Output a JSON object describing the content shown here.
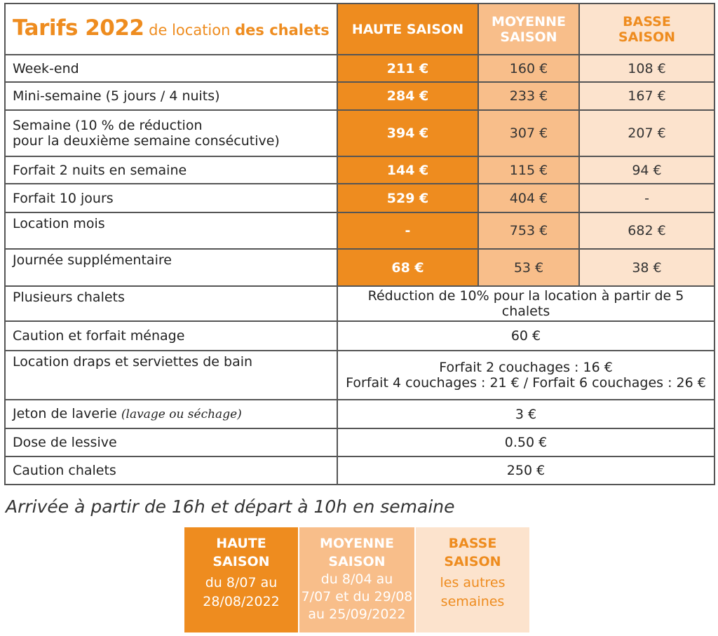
{
  "title": {
    "big": "Tarifs 2022",
    "mid": " de location ",
    "bold": "des chalets"
  },
  "headers": {
    "haute": "HAUTE SAISON",
    "moyenne_1": "MOYENNE",
    "moyenne_2": "SAISON",
    "basse_1": "BASSE",
    "basse_2": "SAISON"
  },
  "rows": [
    {
      "label": "Week-end",
      "haute": "211 €",
      "moyenne": "160 €",
      "basse": "108 €"
    },
    {
      "label": "Mini-semaine (5 jours / 4 nuits)",
      "haute": "284 €",
      "moyenne": "233 €",
      "basse": "167 €"
    },
    {
      "label_1": "Semaine (10 % de réduction",
      "label_2": "pour la deuxième semaine consécutive)",
      "haute": "394 €",
      "moyenne": "307 €",
      "basse": "207 €"
    },
    {
      "label": "Forfait 2 nuits en semaine",
      "haute": "144 €",
      "moyenne": "115 €",
      "basse": "94 €"
    },
    {
      "label": "Forfait 10 jours",
      "haute": "529 €",
      "moyenne": "404 €",
      "basse": "-"
    },
    {
      "label": "Location mois",
      "haute": "-",
      "moyenne": "753 €",
      "basse": "682 €"
    },
    {
      "label": "Journée supplémentaire",
      "haute": "68 €",
      "moyenne": "53 €",
      "basse": "38 €"
    }
  ],
  "extras": {
    "plusieurs_label": "Plusieurs chalets",
    "plusieurs_value": "Réduction de 10% pour la location à partir de 5 chalets",
    "caution_menage_label": "Caution et forfait ménage",
    "caution_menage_value": "60 €",
    "draps_label": "Location draps et serviettes de bain",
    "draps_value_1": "Forfait 2 couchages : 16 €",
    "draps_value_2": "Forfait 4 couchages : 21 € / Forfait 6 couchages : 26 €",
    "jeton_label": "Jeton de laverie",
    "jeton_note": "(lavage ou séchage)",
    "jeton_value": "3 €",
    "lessive_label": "Dose de lessive",
    "lessive_value": "0.50 €",
    "caution_chalets_label": "Caution chalets",
    "caution_chalets_value": "250 €"
  },
  "note": "Arrivée à partir de 16h et départ à 10h en semaine",
  "legend": {
    "haute_title_1": "HAUTE",
    "haute_title_2": "SAISON",
    "haute_dates_1": "du 8/07 au",
    "haute_dates_2": "28/08/2022",
    "moyenne_title_1": "MOYENNE",
    "moyenne_title_2": "SAISON",
    "moyenne_dates_1": "du 8/04 au",
    "moyenne_dates_2": "7/07 et du 29/08",
    "moyenne_dates_3": "au 25/09/2022",
    "basse_title_1": "BASSE",
    "basse_title_2": "SAISON",
    "basse_dates_1": "les autres",
    "basse_dates_2": "semaines"
  },
  "colors": {
    "haute": "#ee8c1f",
    "moyenne": "#f8be8a",
    "basse": "#fce3cd"
  }
}
